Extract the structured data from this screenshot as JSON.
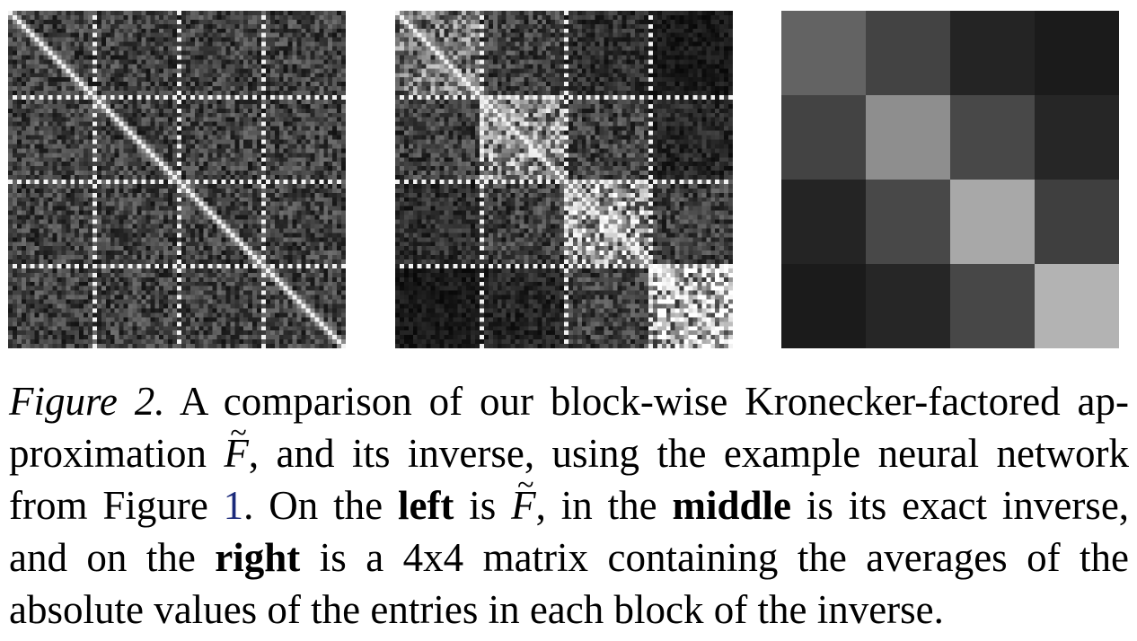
{
  "figure": {
    "panels": [
      {
        "id": "left",
        "grid_blocks": 4,
        "pattern": "fisher",
        "brightness": [
          [
            0.3,
            0.3,
            0.3,
            0.3
          ],
          [
            0.3,
            0.3,
            0.3,
            0.3
          ],
          [
            0.3,
            0.3,
            0.3,
            0.3
          ],
          [
            0.3,
            0.3,
            0.3,
            0.3
          ]
        ]
      },
      {
        "id": "middle",
        "grid_blocks": 4,
        "pattern": "inverse",
        "brightness": [
          [
            0.55,
            0.3,
            0.22,
            0.12
          ],
          [
            0.3,
            0.65,
            0.3,
            0.18
          ],
          [
            0.22,
            0.3,
            0.72,
            0.3
          ],
          [
            0.12,
            0.18,
            0.3,
            0.82
          ]
        ]
      },
      {
        "id": "right",
        "grid_blocks": 4,
        "pattern": "blocks",
        "cell_colors": [
          [
            "#636363",
            "#434343",
            "#242424",
            "#1b1b1b"
          ],
          [
            "#434343",
            "#8e8e8e",
            "#484848",
            "#262626"
          ],
          [
            "#242424",
            "#484848",
            "#a8a8a8",
            "#3f3f3f"
          ],
          [
            "#1b1b1b",
            "#262626",
            "#474747",
            "#b3b3b3"
          ]
        ]
      }
    ]
  },
  "caption": {
    "label": "Figure 2.",
    "line1": "A comparison of our block-wise Kronecker-factored ap-",
    "line2_pre": "proximation",
    "f_symbol": "F",
    "tilde": "~",
    "line2_post": ", and its inverse, using the example neural network",
    "line3_pre": "from Figure",
    "ref_number": "1",
    "line3_a": ". On the",
    "bold_left": "left",
    "line3_b": "is",
    "line3_c": ", in the",
    "bold_middle": "middle",
    "line3_d": "is its exact inverse,",
    "line4_pre": "and on the",
    "bold_right": "right",
    "line4_post": "is a 4x4 matrix containing the averages of the",
    "line5": "absolute values of the entries in each block of the inverse."
  }
}
